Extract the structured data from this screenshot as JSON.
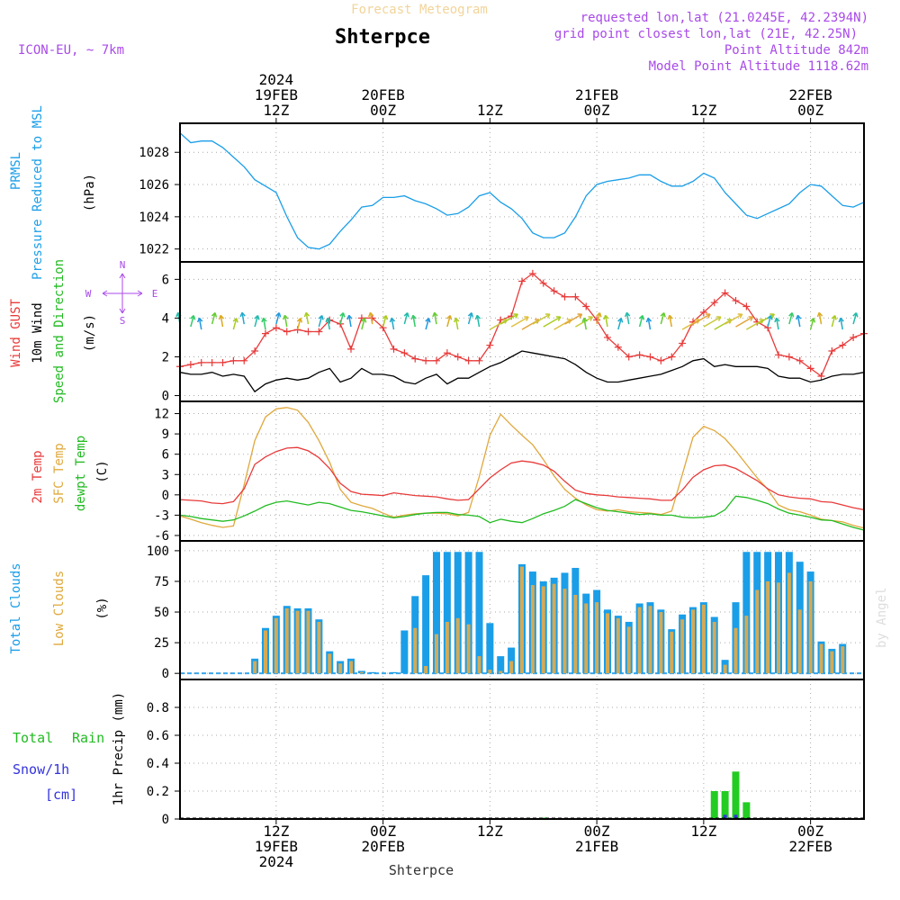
{
  "header": {
    "title_faint": "Forecast Meteogram",
    "station": "Shterpce",
    "model": "ICON-EU, ~ 7km",
    "requested": "requested lon,lat (21.0245E, 42.2394N)",
    "gridpoint": "grid point closest lon,lat (21E, 42.25N)",
    "point_alt": "Point Altitude 842m",
    "model_alt": "Model Point Altitude 1118.62m",
    "footer_station": "Shterpce",
    "watermark": "by Angel"
  },
  "time_axis": {
    "start_hour": 0,
    "end_hour": 64,
    "top_labels": [
      {
        "hour": 9,
        "lines": [
          "2024",
          "19FEB",
          "12Z"
        ]
      },
      {
        "hour": 19,
        "lines": [
          "20FEB",
          "00Z"
        ]
      },
      {
        "hour": 29,
        "lines": [
          "12Z"
        ]
      },
      {
        "hour": 39,
        "lines": [
          "21FEB",
          "00Z"
        ]
      },
      {
        "hour": 49,
        "lines": [
          "12Z"
        ]
      },
      {
        "hour": 59,
        "lines": [
          "22FEB",
          "00Z"
        ]
      }
    ],
    "bottom_labels": [
      {
        "hour": 9,
        "lines": [
          "12Z",
          "19FEB",
          "2024"
        ]
      },
      {
        "hour": 19,
        "lines": [
          "00Z",
          "20FEB"
        ]
      },
      {
        "hour": 29,
        "lines": [
          "12Z"
        ]
      },
      {
        "hour": 39,
        "lines": [
          "00Z",
          "21FEB"
        ]
      },
      {
        "hour": 49,
        "lines": [
          "12Z"
        ]
      },
      {
        "hour": 59,
        "lines": [
          "00Z",
          "22FEB"
        ]
      }
    ]
  },
  "panels": {
    "pressure": {
      "labels": [
        "PRMSL",
        "Pressure Reduced to MSL"
      ],
      "unit": "(hPa)",
      "ticks": [
        "1022",
        "1024",
        "1026",
        "1028"
      ]
    },
    "wind": {
      "labels": [
        "Wind GUST",
        "10m Wind",
        "Speed and Direction"
      ],
      "unit": "(m/s)",
      "ticks": [
        "0",
        "2",
        "4",
        "6"
      ],
      "compass": [
        "N",
        "W",
        "E",
        "S"
      ]
    },
    "temp": {
      "labels": [
        "2m Temp",
        "SFC Temp",
        "dewpt Temp"
      ],
      "unit": "(C)",
      "ticks": [
        "-6",
        "-3",
        "0",
        "3",
        "6",
        "9",
        "12"
      ]
    },
    "clouds": {
      "labels": [
        "Total Clouds",
        "Low Clouds"
      ],
      "unit": "(%)",
      "ticks": [
        "0",
        "25",
        "50",
        "75",
        "100"
      ]
    },
    "precip": {
      "labels": [
        "Total",
        "Rain",
        "Snow/1h",
        "[cm]"
      ],
      "ylabel": "1hr Precip (mm)",
      "ticks": [
        "0",
        "0.2",
        "0.4",
        "0.6",
        "0.8"
      ]
    }
  },
  "colors": {
    "pressure": "#1a9ee8",
    "gust": "#e83a3a",
    "wind": "#000000",
    "t2m": "#e83a3a",
    "sfc": "#e0a83c",
    "dewpt": "#22bb22",
    "total_cloud": "#1a9ee8",
    "low_cloud": "#d4aa55",
    "rain": "#22cc22",
    "snow": "#3333dd",
    "header_purple": "#a84ae8"
  },
  "chart_data": [
    {
      "type": "line",
      "title": "PRMSL Pressure Reduced to MSL",
      "ylabel": "(hPa)",
      "ylim": [
        1021.2,
        1029.8
      ],
      "x": [
        0,
        1,
        2,
        3,
        4,
        5,
        6,
        7,
        8,
        9,
        10,
        11,
        12,
        13,
        14,
        15,
        16,
        17,
        18,
        19,
        20,
        21,
        22,
        23,
        24,
        25,
        26,
        27,
        28,
        29,
        30,
        31,
        32,
        33,
        34,
        35,
        36,
        37,
        38,
        39,
        40,
        41,
        42,
        43,
        44,
        45,
        46,
        47,
        48,
        49,
        50,
        51,
        52,
        53,
        54,
        55,
        56,
        57,
        58,
        59,
        60,
        61,
        62,
        63,
        64
      ],
      "series": [
        {
          "values": [
            1029.2,
            1028.6,
            1028.7,
            1028.7,
            1028.3,
            1027.7,
            1027.1,
            1026.3,
            1025.9,
            1025.5,
            1024.0,
            1022.7,
            1022.1,
            1022.0,
            1022.3,
            1023.1,
            1023.8,
            1024.6,
            1024.7,
            1025.2,
            1025.2,
            1025.3,
            1025.0,
            1024.8,
            1024.5,
            1024.1,
            1024.2,
            1024.6,
            1025.3,
            1025.5,
            1024.9,
            1024.5,
            1023.9,
            1023.0,
            1022.7,
            1022.7,
            1023.0,
            1024.0,
            1025.3,
            1026.0,
            1026.2,
            1026.3,
            1026.4,
            1026.6,
            1026.6,
            1026.2,
            1025.9,
            1025.9,
            1026.2,
            1026.7,
            1026.4,
            1025.5,
            1024.8,
            1024.1,
            1023.9,
            1024.2,
            1024.5,
            1024.8,
            1025.5,
            1026.0,
            1025.9,
            1025.3,
            1024.7,
            1024.6,
            1024.9
          ]
        }
      ]
    },
    {
      "type": "line",
      "title": "Wind GUST / 10m Wind Speed and Direction",
      "ylabel": "(m/s)",
      "ylim": [
        -0.3,
        6.9
      ],
      "x": [
        0,
        1,
        2,
        3,
        4,
        5,
        6,
        7,
        8,
        9,
        10,
        11,
        12,
        13,
        14,
        15,
        16,
        17,
        18,
        19,
        20,
        21,
        22,
        23,
        24,
        25,
        26,
        27,
        28,
        29,
        30,
        31,
        32,
        33,
        34,
        35,
        36,
        37,
        38,
        39,
        40,
        41,
        42,
        43,
        44,
        45,
        46,
        47,
        48,
        49,
        50,
        51,
        52,
        53,
        54,
        55,
        56,
        57,
        58,
        59,
        60,
        61,
        62,
        63,
        64
      ],
      "series": [
        {
          "name": "Wind GUST",
          "values": [
            1.5,
            1.6,
            1.7,
            1.7,
            1.7,
            1.8,
            1.8,
            2.3,
            3.2,
            3.5,
            3.3,
            3.4,
            3.3,
            3.3,
            3.9,
            3.7,
            2.4,
            4.0,
            4.0,
            3.5,
            2.4,
            2.2,
            1.9,
            1.8,
            1.8,
            2.2,
            2.0,
            1.8,
            1.8,
            2.6,
            3.9,
            4.1,
            5.9,
            6.3,
            5.8,
            5.4,
            5.1,
            5.1,
            4.6,
            3.9,
            3.0,
            2.5,
            2.0,
            2.1,
            2.0,
            1.8,
            2.0,
            2.7,
            3.8,
            4.3,
            4.8,
            5.3,
            4.9,
            4.6,
            3.8,
            3.5,
            2.1,
            2.0,
            1.8,
            1.4,
            1.0,
            2.3,
            2.6,
            3.0,
            3.2
          ]
        },
        {
          "name": "10m Wind",
          "values": [
            1.2,
            1.1,
            1.1,
            1.2,
            1.0,
            1.1,
            1.0,
            0.2,
            0.6,
            0.8,
            0.9,
            0.8,
            0.9,
            1.2,
            1.4,
            0.7,
            0.9,
            1.4,
            1.1,
            1.1,
            1.0,
            0.7,
            0.6,
            0.9,
            1.1,
            0.6,
            0.9,
            0.9,
            1.2,
            1.5,
            1.7,
            2.0,
            2.3,
            2.2,
            2.1,
            2.0,
            1.9,
            1.6,
            1.2,
            0.9,
            0.7,
            0.7,
            0.8,
            0.9,
            1.0,
            1.1,
            1.3,
            1.5,
            1.8,
            1.9,
            1.5,
            1.6,
            1.5,
            1.5,
            1.5,
            1.4,
            1.0,
            0.9,
            0.9,
            0.7,
            0.8,
            1.0,
            1.1,
            1.1,
            1.2
          ]
        }
      ]
    },
    {
      "type": "line",
      "title": "2m Temp / SFC Temp / dewpt Temp",
      "ylabel": "(C)",
      "ylim": [
        -6.8,
        13.8
      ],
      "x": [
        0,
        1,
        2,
        3,
        4,
        5,
        6,
        7,
        8,
        9,
        10,
        11,
        12,
        13,
        14,
        15,
        16,
        17,
        18,
        19,
        20,
        21,
        22,
        23,
        24,
        25,
        26,
        27,
        28,
        29,
        30,
        31,
        32,
        33,
        34,
        35,
        36,
        37,
        38,
        39,
        40,
        41,
        42,
        43,
        44,
        45,
        46,
        47,
        48,
        49,
        50,
        51,
        52,
        53,
        54,
        55,
        56,
        57,
        58,
        59,
        60,
        61,
        62,
        63,
        64
      ],
      "series": [
        {
          "name": "2m Temp",
          "values": [
            -0.7,
            -0.8,
            -0.9,
            -1.2,
            -1.3,
            -1.0,
            0.9,
            4.5,
            5.6,
            6.4,
            6.9,
            7.0,
            6.5,
            5.5,
            3.9,
            1.7,
            0.5,
            0.1,
            0.0,
            -0.1,
            0.3,
            0.1,
            -0.1,
            -0.2,
            -0.3,
            -0.6,
            -0.8,
            -0.7,
            0.9,
            2.5,
            3.7,
            4.7,
            5.0,
            4.8,
            4.4,
            3.5,
            2.0,
            0.7,
            0.2,
            0.0,
            -0.1,
            -0.3,
            -0.4,
            -0.5,
            -0.6,
            -0.8,
            -0.8,
            0.7,
            2.6,
            3.7,
            4.3,
            4.4,
            3.9,
            3.0,
            2.1,
            0.9,
            0.0,
            -0.3,
            -0.5,
            -0.6,
            -1.0,
            -1.1,
            -1.5,
            -1.9,
            -2.2
          ]
        },
        {
          "name": "SFC Temp",
          "values": [
            -3.1,
            -3.6,
            -4.1,
            -4.5,
            -4.8,
            -4.6,
            1.5,
            8.0,
            11.5,
            12.7,
            12.9,
            12.5,
            10.7,
            8.0,
            4.8,
            0.8,
            -1.1,
            -1.6,
            -2.0,
            -2.7,
            -3.3,
            -3.0,
            -2.8,
            -2.7,
            -2.7,
            -2.8,
            -3.1,
            -2.6,
            2.7,
            8.8,
            11.9,
            10.3,
            8.8,
            7.4,
            5.2,
            2.8,
            0.8,
            -0.5,
            -1.5,
            -2.2,
            -2.4,
            -2.2,
            -2.5,
            -2.6,
            -2.7,
            -2.9,
            -2.4,
            3.0,
            8.5,
            10.1,
            9.5,
            8.3,
            6.5,
            4.5,
            2.5,
            0.8,
            -1.5,
            -2.2,
            -2.5,
            -3.0,
            -3.6,
            -3.8,
            -4.0,
            -4.5,
            -4.9
          ]
        },
        {
          "name": "dewpt Temp",
          "values": [
            -3.0,
            -3.2,
            -3.5,
            -3.7,
            -3.9,
            -3.7,
            -3.1,
            -2.4,
            -1.6,
            -1.1,
            -0.9,
            -1.2,
            -1.5,
            -1.1,
            -1.3,
            -1.8,
            -2.3,
            -2.5,
            -2.8,
            -3.1,
            -3.4,
            -3.2,
            -2.9,
            -2.7,
            -2.6,
            -2.6,
            -2.9,
            -3.0,
            -3.2,
            -4.1,
            -3.6,
            -3.9,
            -4.1,
            -3.5,
            -2.8,
            -2.3,
            -1.7,
            -0.7,
            -1.3,
            -1.9,
            -2.3,
            -2.5,
            -2.7,
            -2.9,
            -2.8,
            -3.0,
            -3.0,
            -3.3,
            -3.4,
            -3.3,
            -3.1,
            -2.2,
            -0.2,
            -0.4,
            -0.8,
            -1.3,
            -2.1,
            -2.7,
            -3.0,
            -3.3,
            -3.7,
            -3.8,
            -4.3,
            -4.8,
            -5.2
          ]
        }
      ]
    },
    {
      "type": "bar",
      "title": "Total Clouds / Low Clouds",
      "ylabel": "(%)",
      "ylim": [
        -5,
        108
      ],
      "x": [
        0,
        1,
        2,
        3,
        4,
        5,
        6,
        7,
        8,
        9,
        10,
        11,
        12,
        13,
        14,
        15,
        16,
        17,
        18,
        19,
        20,
        21,
        22,
        23,
        24,
        25,
        26,
        27,
        28,
        29,
        30,
        31,
        32,
        33,
        34,
        35,
        36,
        37,
        38,
        39,
        40,
        41,
        42,
        43,
        44,
        45,
        46,
        47,
        48,
        49,
        50,
        51,
        52,
        53,
        54,
        55,
        56,
        57,
        58,
        59,
        60,
        61,
        62,
        63,
        64
      ],
      "series": [
        {
          "name": "Total Clouds",
          "values": [
            0,
            0,
            0,
            0,
            0,
            0,
            0,
            12,
            37,
            47,
            55,
            53,
            53,
            44,
            18,
            10,
            12,
            2,
            1,
            0,
            1,
            35,
            63,
            80,
            99,
            99,
            99,
            99,
            99,
            41,
            14,
            21,
            89,
            83,
            75,
            78,
            82,
            86,
            65,
            68,
            52,
            47,
            42,
            57,
            58,
            52,
            36,
            48,
            54,
            58,
            46,
            11,
            58,
            99,
            99,
            99,
            99,
            99,
            91,
            83,
            26,
            20,
            24,
            0,
            0
          ]
        },
        {
          "name": "Low Clouds",
          "values": [
            0,
            0,
            0,
            0,
            0,
            0,
            0,
            10,
            35,
            45,
            53,
            51,
            51,
            42,
            16,
            8,
            10,
            1,
            0,
            0,
            0,
            0,
            37,
            6,
            32,
            42,
            45,
            40,
            14,
            3,
            2,
            10,
            87,
            72,
            71,
            73,
            69,
            64,
            57,
            58,
            49,
            45,
            38,
            54,
            55,
            50,
            34,
            44,
            52,
            56,
            42,
            7,
            37,
            47,
            68,
            75,
            74,
            82,
            52,
            75,
            24,
            18,
            22,
            0,
            0
          ]
        }
      ]
    },
    {
      "type": "bar",
      "title": "1hr Precip",
      "ylabel": "1hr Precip (mm)",
      "ylim": [
        0,
        1.0
      ],
      "x": [
        0,
        1,
        2,
        3,
        4,
        5,
        6,
        7,
        8,
        9,
        10,
        11,
        12,
        13,
        14,
        15,
        16,
        17,
        18,
        19,
        20,
        21,
        22,
        23,
        24,
        25,
        26,
        27,
        28,
        29,
        30,
        31,
        32,
        33,
        34,
        35,
        36,
        37,
        38,
        39,
        40,
        41,
        42,
        43,
        44,
        45,
        46,
        47,
        48,
        49,
        50,
        51,
        52,
        53,
        54,
        55,
        56,
        57,
        58,
        59,
        60,
        61,
        62,
        63,
        64
      ],
      "series": [
        {
          "name": "Rain",
          "values": [
            0,
            0,
            0,
            0,
            0,
            0,
            0,
            0,
            0,
            0,
            0,
            0,
            0,
            0,
            0,
            0,
            0,
            0,
            0,
            0,
            0,
            0,
            0,
            0,
            0,
            0,
            0,
            0,
            0,
            0,
            0,
            0,
            0,
            0,
            0.01,
            0,
            0,
            0,
            0,
            0,
            0,
            0,
            0,
            0,
            0,
            0,
            0,
            0,
            0,
            0,
            0.2,
            0.2,
            0.34,
            0.12,
            0,
            0,
            0,
            0,
            0,
            0,
            0,
            0,
            0,
            0,
            0
          ]
        },
        {
          "name": "Snow/1h",
          "values": [
            0,
            0,
            0,
            0,
            0,
            0,
            0,
            0,
            0,
            0,
            0,
            0,
            0,
            0,
            0,
            0,
            0,
            0,
            0,
            0,
            0,
            0,
            0,
            0,
            0,
            0,
            0,
            0,
            0,
            0,
            0,
            0,
            0,
            0,
            0,
            0,
            0,
            0,
            0,
            0,
            0,
            0,
            0,
            0,
            0,
            0,
            0,
            0,
            0,
            0,
            0,
            0.03,
            0.03,
            0,
            0,
            0,
            0,
            0,
            0,
            0,
            0,
            0,
            0,
            0,
            0
          ]
        }
      ]
    }
  ]
}
